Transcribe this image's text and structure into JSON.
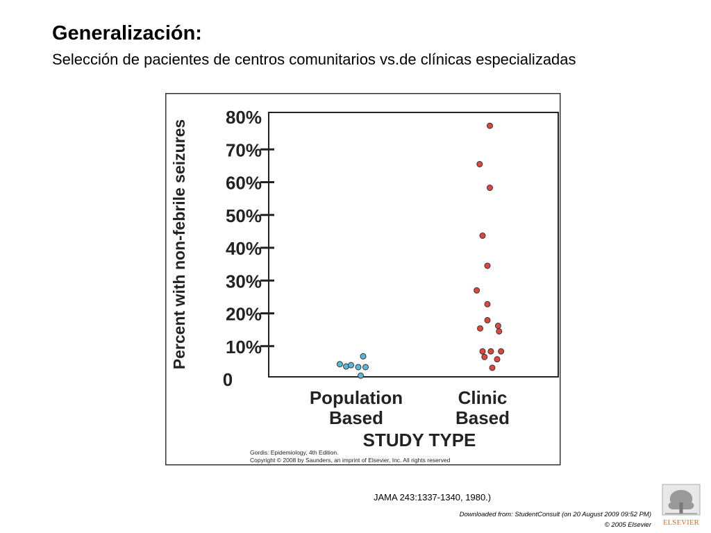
{
  "slide": {
    "title": "Generalización:",
    "subtitle": "Selección de pacientes de centros comunitarios vs.de  clínicas especializadas",
    "citation": "JAMA 243:1337-1340, 1980.)",
    "download_note": "Downloaded from: StudentConsult (on 20 August 2009 09:52 PM)",
    "copyright_note": "© 2005 Elsevier",
    "logo_text": "ELSEVIER"
  },
  "figure_credit": {
    "line1": "Gordis: Epidemiology, 4th Edition.",
    "line2": "Copyright © 2008 by Saunders, an imprint of Elsevier, Inc. All rights reserved"
  },
  "chart_data": {
    "type": "scatter",
    "ylabel": "Percent with non-febrile seizures",
    "xlabel": "STUDY TYPE",
    "categories": [
      {
        "line1": "Population",
        "line2": "Based"
      },
      {
        "line1": "Clinic",
        "line2": "Based"
      }
    ],
    "y_ticks": [
      {
        "value": 0,
        "label": "0"
      },
      {
        "value": 10,
        "label": "10%"
      },
      {
        "value": 20,
        "label": "20%"
      },
      {
        "value": 30,
        "label": "30%"
      },
      {
        "value": 40,
        "label": "40%"
      },
      {
        "value": 50,
        "label": "50%"
      },
      {
        "value": 60,
        "label": "60%"
      },
      {
        "value": 70,
        "label": "70%"
      },
      {
        "value": 80,
        "label": "80%"
      }
    ],
    "ylim": [
      0,
      80
    ],
    "series": [
      {
        "category": 0,
        "color": "#5bb8dc",
        "points": [
          {
            "offset": -0.38,
            "y": 4.5
          },
          {
            "offset": -0.25,
            "y": 3.8
          },
          {
            "offset": -0.15,
            "y": 4.2
          },
          {
            "offset": 0.0,
            "y": 3.6
          },
          {
            "offset": 0.05,
            "y": 1.0
          },
          {
            "offset": 0.1,
            "y": 6.9
          },
          {
            "offset": 0.15,
            "y": 3.6
          }
        ]
      },
      {
        "category": 1,
        "color": "#e0473c",
        "points": [
          {
            "offset": 0.15,
            "y": 77.2
          },
          {
            "offset": -0.06,
            "y": 65.5
          },
          {
            "offset": 0.15,
            "y": 58.3
          },
          {
            "offset": 0.0,
            "y": 43.7
          },
          {
            "offset": 0.1,
            "y": 34.5
          },
          {
            "offset": -0.12,
            "y": 27.0
          },
          {
            "offset": 0.1,
            "y": 22.8
          },
          {
            "offset": 0.1,
            "y": 17.9
          },
          {
            "offset": -0.05,
            "y": 15.4
          },
          {
            "offset": 0.32,
            "y": 16.2
          },
          {
            "offset": 0.34,
            "y": 14.5
          },
          {
            "offset": 0.0,
            "y": 8.4
          },
          {
            "offset": 0.04,
            "y": 6.7
          },
          {
            "offset": 0.17,
            "y": 8.4
          },
          {
            "offset": 0.3,
            "y": 6.0
          },
          {
            "offset": 0.38,
            "y": 8.4
          },
          {
            "offset": 0.2,
            "y": 3.4
          }
        ]
      }
    ]
  }
}
